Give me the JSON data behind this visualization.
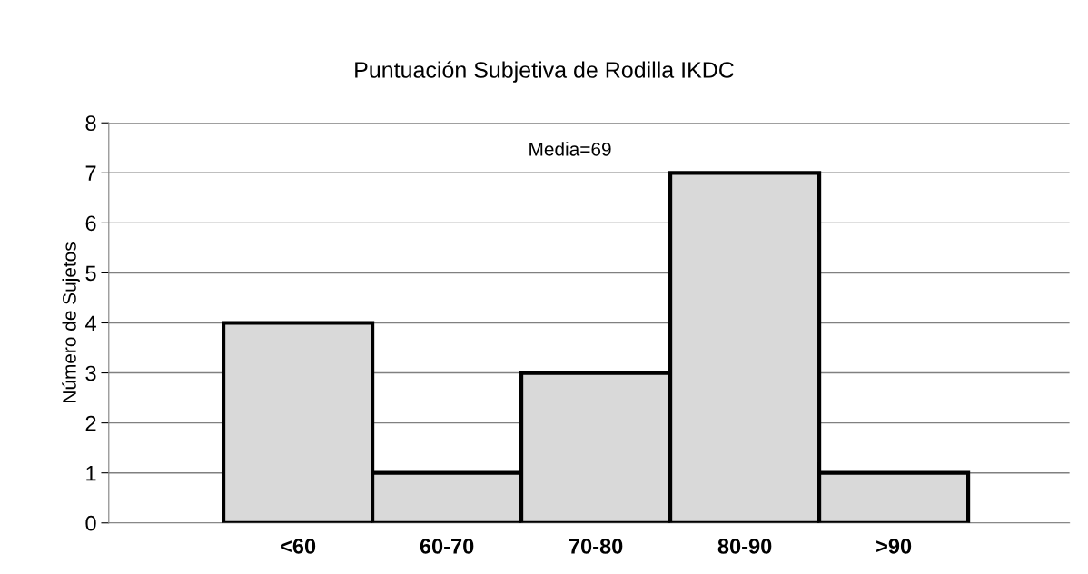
{
  "chart_data": {
    "type": "bar",
    "title": "Puntuación Subjetiva de Rodilla IKDC",
    "ylabel": "Número de Sujetos",
    "categories": [
      "<60",
      "60-70",
      "70-80",
      "80-90",
      ">90"
    ],
    "values": [
      4,
      1,
      3,
      7,
      1
    ],
    "color": "#d9d9d9",
    "ylim": [
      0,
      8
    ],
    "yticks": [
      0,
      1,
      2,
      3,
      4,
      5,
      6,
      7,
      8
    ],
    "grid": "y",
    "annotations": [
      "Media=69"
    ]
  }
}
